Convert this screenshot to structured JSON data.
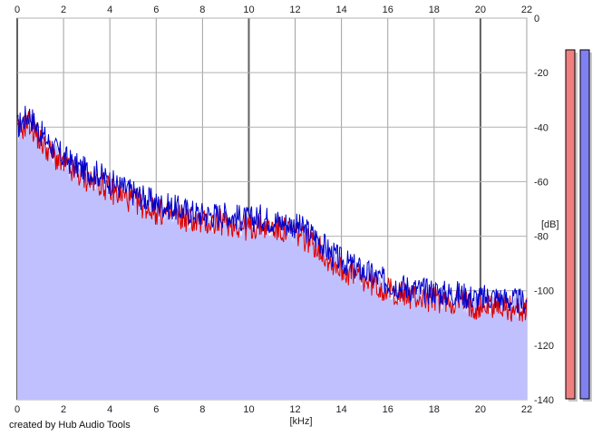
{
  "chart_data": {
    "type": "area",
    "xlabel": "[kHz]",
    "ylabel": "[dB]",
    "x_ticks": [
      "0",
      "2",
      "4",
      "6",
      "8",
      "10",
      "12",
      "14",
      "16",
      "18",
      "20",
      "22"
    ],
    "y_ticks": [
      "0",
      "-20",
      "-40",
      "-60",
      "-80",
      "-100",
      "-120",
      "-140"
    ],
    "xlim": [
      0,
      22
    ],
    "ylim": [
      -140,
      0
    ],
    "grid": true,
    "series": [
      {
        "color": "#0000cc",
        "x": [
          0,
          0.5,
          1,
          1.5,
          2,
          2.5,
          3,
          3.5,
          4,
          4.5,
          5,
          5.5,
          6,
          6.5,
          7,
          7.5,
          8,
          8.5,
          9,
          9.5,
          10,
          10.5,
          11,
          11.5,
          12,
          12.5,
          13,
          13.5,
          14,
          14.5,
          15,
          15.5,
          16,
          16.5,
          17,
          17.5,
          18,
          18.5,
          19,
          19.5,
          20,
          20.5,
          21,
          21.5,
          22
        ],
        "y": [
          -40,
          -35,
          -42,
          -47,
          -51,
          -54,
          -56,
          -57,
          -60,
          -62,
          -64,
          -66,
          -68,
          -69,
          -70,
          -71,
          -72,
          -72,
          -72,
          -73,
          -74,
          -73,
          -74,
          -75,
          -76,
          -78,
          -81,
          -86,
          -89,
          -91,
          -93,
          -95,
          -97,
          -98,
          -99,
          -100,
          -100,
          -101,
          -101,
          -102,
          -103,
          -102,
          -103,
          -104,
          -104
        ]
      },
      {
        "color": "#dd0000",
        "x": [
          0,
          0.5,
          1,
          1.5,
          2,
          2.5,
          3,
          3.5,
          4,
          4.5,
          5,
          5.5,
          6,
          6.5,
          7,
          7.5,
          8,
          8.5,
          9,
          9.5,
          10,
          10.5,
          11,
          11.5,
          12,
          12.5,
          13,
          13.5,
          14,
          14.5,
          15,
          15.5,
          16,
          16.5,
          17,
          17.5,
          18,
          18.5,
          19,
          19.5,
          20,
          20.5,
          21,
          21.5,
          22
        ],
        "y": [
          -42,
          -38,
          -45,
          -50,
          -54,
          -57,
          -59,
          -60,
          -63,
          -65,
          -67,
          -69,
          -71,
          -72,
          -73,
          -74,
          -75,
          -75,
          -75,
          -76,
          -77,
          -76,
          -77,
          -78,
          -79,
          -81,
          -84,
          -89,
          -92,
          -94,
          -96,
          -98,
          -100,
          -101,
          -102,
          -103,
          -103,
          -104,
          -104,
          -105,
          -106,
          -105,
          -106,
          -107,
          -107
        ]
      }
    ],
    "fill_color": "#c0c0ff",
    "meters": [
      {
        "color": "#f08080",
        "level": 1.0
      },
      {
        "color": "#8080f0",
        "level": 1.0
      }
    ]
  },
  "credit": "created by Hub Audio Tools"
}
